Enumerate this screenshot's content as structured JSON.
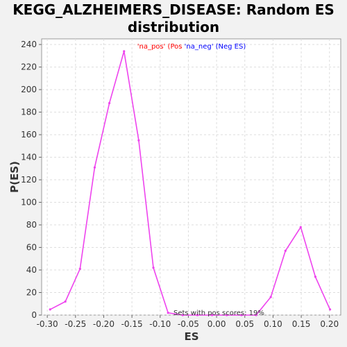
{
  "chart_data": {
    "type": "line",
    "title": "KEGG_ALZHEIMERS_DISEASE: Random ES distribution",
    "title_line1": "KEGG_ALZHEIMERS_DISEASE: Random ES",
    "title_line2": "distribution",
    "xlabel": "ES",
    "ylabel": "P(ES)",
    "xlim": [
      -0.31,
      0.22
    ],
    "ylim": [
      0,
      245
    ],
    "xticks": [
      -0.3,
      -0.25,
      -0.2,
      -0.15,
      -0.1,
      -0.05,
      0.0,
      0.05,
      0.1,
      0.15,
      0.2
    ],
    "xtick_labels": [
      "-0.30",
      "-0.25",
      "-0.20",
      "-0.15",
      "-0.10",
      "-0.05",
      "0.00",
      "0.05",
      "0.10",
      "0.15",
      "0.20"
    ],
    "yticks": [
      0,
      20,
      40,
      60,
      80,
      100,
      120,
      140,
      160,
      180,
      200,
      220,
      240
    ],
    "ytick_labels": [
      "0",
      "20",
      "40",
      "60",
      "80",
      "100",
      "120",
      "140",
      "160",
      "180",
      "200",
      "220",
      "240"
    ],
    "grid": true,
    "line_color": "#ee44ee",
    "legend": {
      "placement": "top-center",
      "pos_text": "'na_pos' (Pos ",
      "neg_text": "'na_neg' (Neg ES)",
      "pos_color": "#ff0000",
      "neg_color": "#0000ff"
    },
    "annotation": "Sets with pos scores: 19%",
    "series": [
      {
        "x": [
          -0.295,
          -0.268,
          -0.242,
          -0.216,
          -0.19,
          -0.164,
          -0.138,
          -0.112,
          -0.086,
          -0.06,
          -0.034,
          -0.008,
          0.018,
          0.044,
          0.07,
          0.096,
          0.122,
          0.149,
          0.175,
          0.201
        ],
        "y": [
          5,
          12,
          41,
          131,
          188,
          234,
          155,
          42,
          2,
          0,
          0,
          0,
          0,
          0,
          0,
          16,
          57,
          78,
          34,
          5
        ]
      }
    ]
  }
}
